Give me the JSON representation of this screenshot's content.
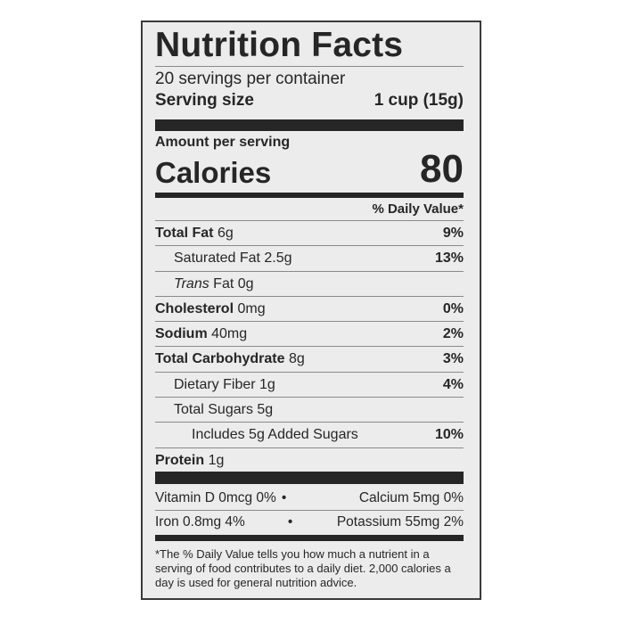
{
  "title": "Nutrition Facts",
  "servings_per_container": "20 servings per container",
  "serving_size": {
    "label": "Serving size",
    "value": "1 cup (15g)"
  },
  "amount_per_serving": "Amount per serving",
  "calories": {
    "label": "Calories",
    "value": "80"
  },
  "daily_value_header": "% Daily Value*",
  "nutrients": [
    {
      "name": "Total Fat",
      "amount": "6g",
      "dv": "9%"
    },
    {
      "name": "Saturated Fat",
      "amount": "2.5g",
      "dv": "13%"
    },
    {
      "name": "Trans",
      "amount": "Fat 0g",
      "dv": ""
    },
    {
      "name": "Cholesterol",
      "amount": "0mg",
      "dv": "0%"
    },
    {
      "name": "Sodium",
      "amount": "40mg",
      "dv": "2%"
    },
    {
      "name": "Total Carbohydrate",
      "amount": "8g",
      "dv": "3%"
    },
    {
      "name": "Dietary Fiber",
      "amount": "1g",
      "dv": "4%"
    },
    {
      "name": "Total Sugars",
      "amount": "5g",
      "dv": ""
    },
    {
      "name": "Includes 5g Added Sugars",
      "amount": "",
      "dv": "10%"
    },
    {
      "name": "Protein",
      "amount": "1g",
      "dv": ""
    }
  ],
  "vitamins": [
    {
      "left": "Vitamin D 0mcg 0%",
      "sep": "•",
      "right": "Calcium 5mg 0%"
    },
    {
      "left": "Iron 0.8mg 4%",
      "sep": "•",
      "right": "Potassium 55mg 2%"
    }
  ],
  "footnote": "*The % Daily Value tells you how much a nutrient in a serving of food contributes to a daily diet. 2,000 calories a day is used for general nutrition advice."
}
